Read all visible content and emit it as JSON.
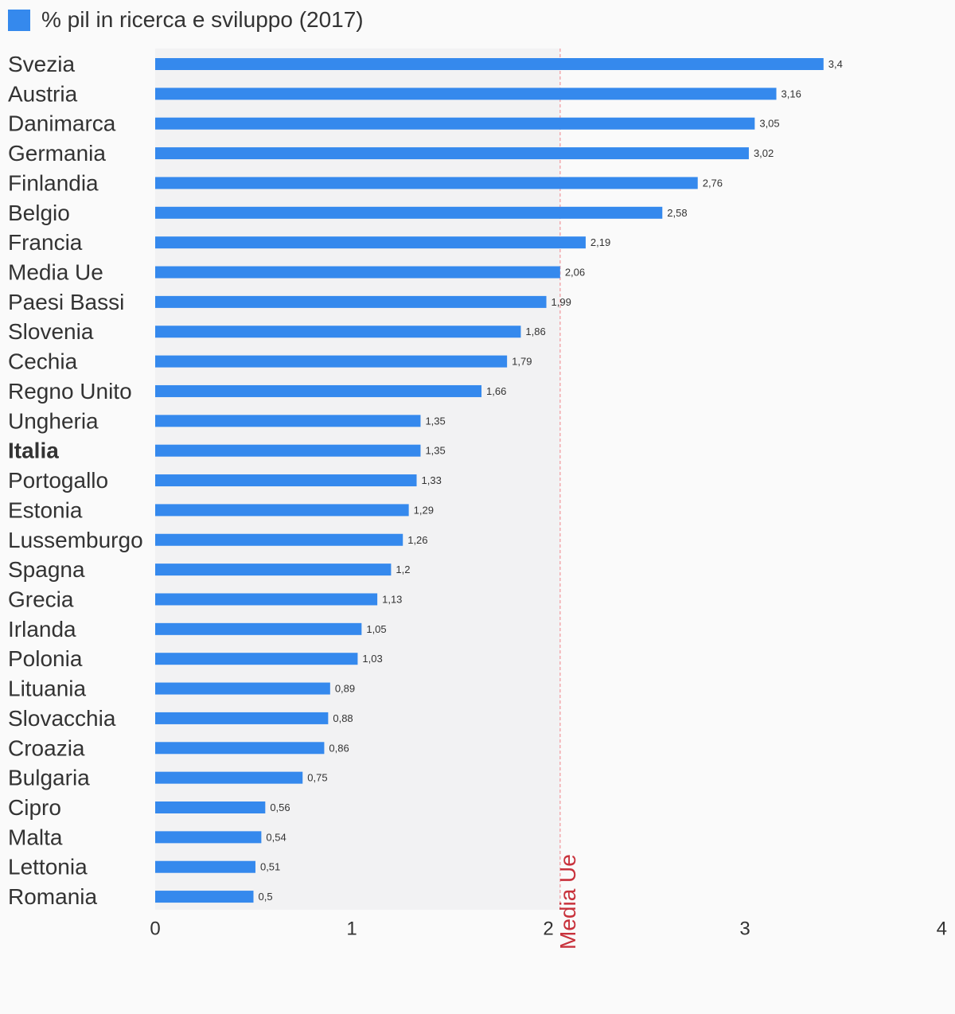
{
  "chart_data": {
    "type": "bar",
    "orientation": "horizontal",
    "legend": {
      "label": "% pil in ricerca e sviluppo (2017)",
      "placement": "top-left",
      "color": "#3589ed"
    },
    "categories": [
      "Svezia",
      "Austria",
      "Danimarca",
      "Germania",
      "Finlandia",
      "Belgio",
      "Francia",
      "Media Ue",
      "Paesi Bassi",
      "Slovenia",
      "Cechia",
      "Regno Unito",
      "Ungheria",
      "Italia",
      "Portogallo",
      "Estonia",
      "Lussemburgo",
      "Spagna",
      "Grecia",
      "Irlanda",
      "Polonia",
      "Lituania",
      "Slovacchia",
      "Croazia",
      "Bulgaria",
      "Cipro",
      "Malta",
      "Lettonia",
      "Romania"
    ],
    "values": [
      3.4,
      3.16,
      3.05,
      3.02,
      2.76,
      2.58,
      2.19,
      2.06,
      1.99,
      1.86,
      1.79,
      1.66,
      1.35,
      1.35,
      1.33,
      1.29,
      1.26,
      1.2,
      1.13,
      1.05,
      1.03,
      0.89,
      0.88,
      0.86,
      0.75,
      0.56,
      0.54,
      0.51,
      0.5
    ],
    "value_labels": [
      "3,4",
      "3,16",
      "3,05",
      "3,02",
      "2,76",
      "2,58",
      "2,19",
      "2,06",
      "1,99",
      "1,86",
      "1,79",
      "1,66",
      "1,35",
      "1,35",
      "1,33",
      "1,29",
      "1,26",
      "1,2",
      "1,13",
      "1,05",
      "1,03",
      "0,89",
      "0,88",
      "0,86",
      "0,75",
      "0,56",
      "0,54",
      "0,51",
      "0,5"
    ],
    "highlighted_category": "Italia",
    "xlim": [
      0,
      4
    ],
    "xticks": [
      0,
      1,
      2,
      3,
      4
    ],
    "xtick_labels": [
      "0",
      "1",
      "2",
      "3",
      "4"
    ],
    "reference_line": {
      "label": "Media Ue",
      "value": 2.06,
      "color": "#c8323c"
    },
    "shaded_band": {
      "from": 0,
      "to": 2.06,
      "color": "#f2f2f3"
    },
    "bar_color": "#3589ed",
    "grid": false
  }
}
